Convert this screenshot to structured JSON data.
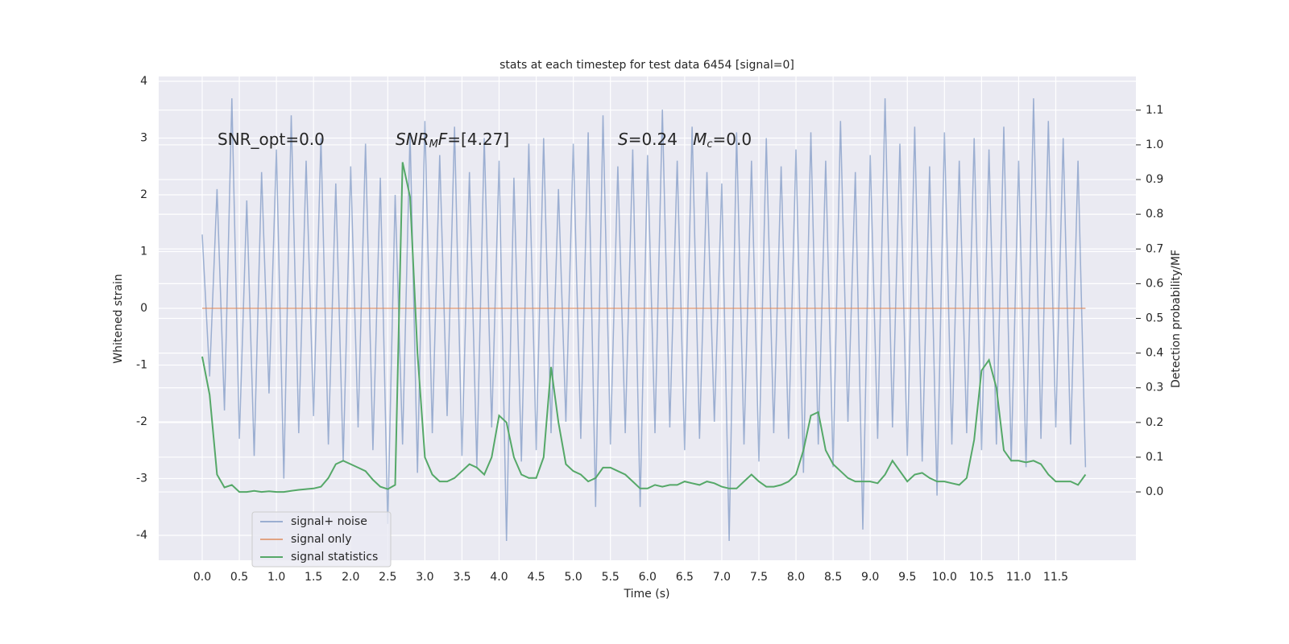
{
  "chart_data": {
    "type": "line",
    "title": "stats at each timestep for test data 6454 [signal=0]",
    "xlabel": "Time (s)",
    "ylabel": "Whitened strain",
    "y2label": "Detection probability/MF",
    "annotations": [
      [
        "SNR_opt=0.0"
      ],
      [
        "SNR",
        "M",
        "F",
        "=[4.27]"
      ],
      [
        "S",
        "=0.24   ",
        "M",
        "c",
        "=0.0"
      ]
    ],
    "xlim": [
      -0.586,
      12.58
    ],
    "ylim": [
      -4.44,
      4.085
    ],
    "y2lim": [
      -0.197,
      1.197
    ],
    "xticks": [
      {
        "value": 0,
        "label": "0.0"
      },
      0.5,
      {
        "value": 1,
        "label": "1.0"
      },
      1.5,
      {
        "value": 2,
        "label": "2.0"
      },
      2.5,
      {
        "value": 3,
        "label": "3.0"
      },
      3.5,
      {
        "value": 4,
        "label": "4.0"
      },
      4.5,
      {
        "value": 5,
        "label": "5.0"
      },
      5.5,
      {
        "value": 6,
        "label": "6.0"
      },
      6.5,
      {
        "value": 7,
        "label": "7.0"
      },
      7.5,
      {
        "value": 8,
        "label": "8.0"
      },
      8.5,
      {
        "value": 9,
        "label": "9.0"
      },
      9.5,
      {
        "value": 10,
        "label": "10.0"
      },
      10.5,
      {
        "value": 11,
        "label": "11.0"
      },
      11.5
    ],
    "yticks": [
      -4,
      -3,
      -2,
      -1,
      0,
      1,
      2,
      3,
      4
    ],
    "y2ticks": [
      {
        "value": 0,
        "label": "0.0"
      },
      0.1,
      0.2,
      0.3,
      0.4,
      0.5,
      0.6,
      0.7,
      0.8,
      0.9,
      {
        "value": 1,
        "label": "1.0"
      },
      1.1
    ],
    "grid": true,
    "legend": "lower left",
    "x": [
      0,
      0.1,
      0.2,
      0.3,
      0.4,
      0.5,
      0.6,
      0.7,
      0.8,
      0.9,
      1,
      1.1,
      1.2,
      1.3,
      1.4,
      1.5,
      1.6,
      1.7,
      1.8,
      1.9,
      2,
      2.1,
      2.2,
      2.3,
      2.4,
      2.5,
      2.6,
      2.7,
      2.8,
      2.9,
      3,
      3.1,
      3.2,
      3.3,
      3.4,
      3.5,
      3.6,
      3.7,
      3.8,
      3.9,
      4,
      4.1,
      4.2,
      4.3,
      4.4,
      4.5,
      4.6,
      4.7,
      4.8,
      4.9,
      5,
      5.1,
      5.2,
      5.3,
      5.4,
      5.5,
      5.6,
      5.7,
      5.8,
      5.9,
      6,
      6.1,
      6.2,
      6.3,
      6.4,
      6.5,
      6.6,
      6.7,
      6.8,
      6.9,
      7,
      7.1,
      7.2,
      7.3,
      7.4,
      7.5,
      7.6,
      7.7,
      7.8,
      7.9,
      8,
      8.1,
      8.2,
      8.3,
      8.4,
      8.5,
      8.6,
      8.7,
      8.8,
      8.9,
      9,
      9.1,
      9.2,
      9.3,
      9.4,
      9.5,
      9.6,
      9.7,
      9.8,
      9.9,
      10,
      10.1,
      10.2,
      10.3,
      10.4,
      10.5,
      10.6,
      10.7,
      10.8,
      10.9,
      11,
      11.1,
      11.2,
      11.3,
      11.4,
      11.5,
      11.6,
      11.7,
      11.8,
      11.9
    ],
    "series": [
      {
        "name": "signal+ noise",
        "color": "#4c72b0",
        "opacity": 0.5,
        "values": [
          1.3,
          -1.2,
          2.1,
          -1.8,
          3.7,
          -2.3,
          1.9,
          -2.6,
          2.4,
          -1.5,
          2.8,
          -3.0,
          3.4,
          -2.2,
          2.6,
          -1.9,
          3.0,
          -2.4,
          2.2,
          -2.7,
          2.5,
          -2.1,
          2.9,
          -2.5,
          2.3,
          -3.8,
          2.0,
          -2.4,
          3.1,
          -2.9,
          3.3,
          -2.2,
          2.7,
          -1.9,
          3.2,
          -2.6,
          2.4,
          -2.8,
          3.0,
          -2.1,
          2.6,
          -4.1,
          2.3,
          -2.7,
          2.9,
          -2.5,
          3.0,
          -2.2,
          2.1,
          -2.0,
          2.9,
          -2.3,
          3.1,
          -3.5,
          3.4,
          -2.4,
          2.5,
          -2.2,
          2.8,
          -3.5,
          2.7,
          -2.2,
          3.5,
          -2.1,
          2.6,
          -2.5,
          3.2,
          -2.3,
          2.4,
          -2.0,
          2.2,
          -4.1,
          3.1,
          -2.4,
          2.6,
          -2.7,
          3.0,
          -2.2,
          2.5,
          -2.3,
          2.8,
          -2.9,
          3.1,
          -2.4,
          2.6,
          -2.8,
          3.3,
          -2.0,
          2.4,
          -3.9,
          2.7,
          -2.3,
          3.7,
          -2.1,
          2.9,
          -2.6,
          3.2,
          -2.7,
          2.5,
          -3.3,
          3.1,
          -2.4,
          2.6,
          -2.2,
          3.0,
          -2.5,
          2.8,
          -2.4,
          3.2,
          -2.7,
          2.6,
          -2.8,
          3.7,
          -2.3,
          3.3,
          -2.1,
          3.0,
          -2.4,
          2.6,
          -2.8
        ]
      },
      {
        "name": "signal only",
        "color": "#dd8452",
        "opacity": 0.7,
        "values": [
          0,
          0,
          0,
          0,
          0,
          0,
          0,
          0,
          0,
          0,
          0,
          0,
          0,
          0,
          0,
          0,
          0,
          0,
          0,
          0,
          0,
          0,
          0,
          0,
          0,
          0,
          0,
          0,
          0,
          0,
          0,
          0,
          0,
          0,
          0,
          0,
          0,
          0,
          0,
          0,
          0,
          0,
          0,
          0,
          0,
          0,
          0,
          0,
          0,
          0,
          0,
          0,
          0,
          0,
          0,
          0,
          0,
          0,
          0,
          0,
          0,
          0,
          0,
          0,
          0,
          0,
          0,
          0,
          0,
          0,
          0,
          0,
          0,
          0,
          0,
          0,
          0,
          0,
          0,
          0,
          0,
          0,
          0,
          0,
          0,
          0,
          0,
          0,
          0,
          0,
          0,
          0,
          0,
          0,
          0,
          0,
          0,
          0,
          0,
          0,
          0,
          0,
          0,
          0,
          0,
          0,
          0,
          0,
          0,
          0,
          0,
          0,
          0,
          0,
          0,
          0,
          0,
          0,
          0,
          0
        ]
      },
      {
        "name": "signal statistics",
        "color": "#55a868",
        "opacity": 1,
        "axis": "y2",
        "values": [
          0.39,
          0.28,
          0.05,
          0.013,
          0.02,
          0.0,
          0.0,
          0.003,
          0.0,
          0.002,
          0.0,
          0.0,
          0.003,
          0.006,
          0.008,
          0.01,
          0.015,
          0.04,
          0.08,
          0.09,
          0.08,
          0.07,
          0.06,
          0.035,
          0.015,
          0.008,
          0.02,
          0.95,
          0.85,
          0.4,
          0.1,
          0.05,
          0.03,
          0.03,
          0.04,
          0.06,
          0.08,
          0.07,
          0.05,
          0.1,
          0.22,
          0.2,
          0.1,
          0.05,
          0.04,
          0.04,
          0.1,
          0.36,
          0.2,
          0.08,
          0.06,
          0.05,
          0.03,
          0.04,
          0.07,
          0.07,
          0.06,
          0.05,
          0.03,
          0.01,
          0.01,
          0.02,
          0.015,
          0.02,
          0.02,
          0.03,
          0.025,
          0.02,
          0.03,
          0.025,
          0.015,
          0.01,
          0.01,
          0.03,
          0.05,
          0.03,
          0.015,
          0.015,
          0.02,
          0.03,
          0.05,
          0.12,
          0.22,
          0.23,
          0.12,
          0.08,
          0.06,
          0.04,
          0.03,
          0.03,
          0.03,
          0.025,
          0.05,
          0.09,
          0.06,
          0.03,
          0.05,
          0.055,
          0.04,
          0.03,
          0.03,
          0.025,
          0.02,
          0.04,
          0.15,
          0.35,
          0.38,
          0.3,
          0.12,
          0.09,
          0.09,
          0.085,
          0.09,
          0.08,
          0.05,
          0.03,
          0.03,
          0.03,
          0.02,
          0.05
        ]
      }
    ]
  }
}
